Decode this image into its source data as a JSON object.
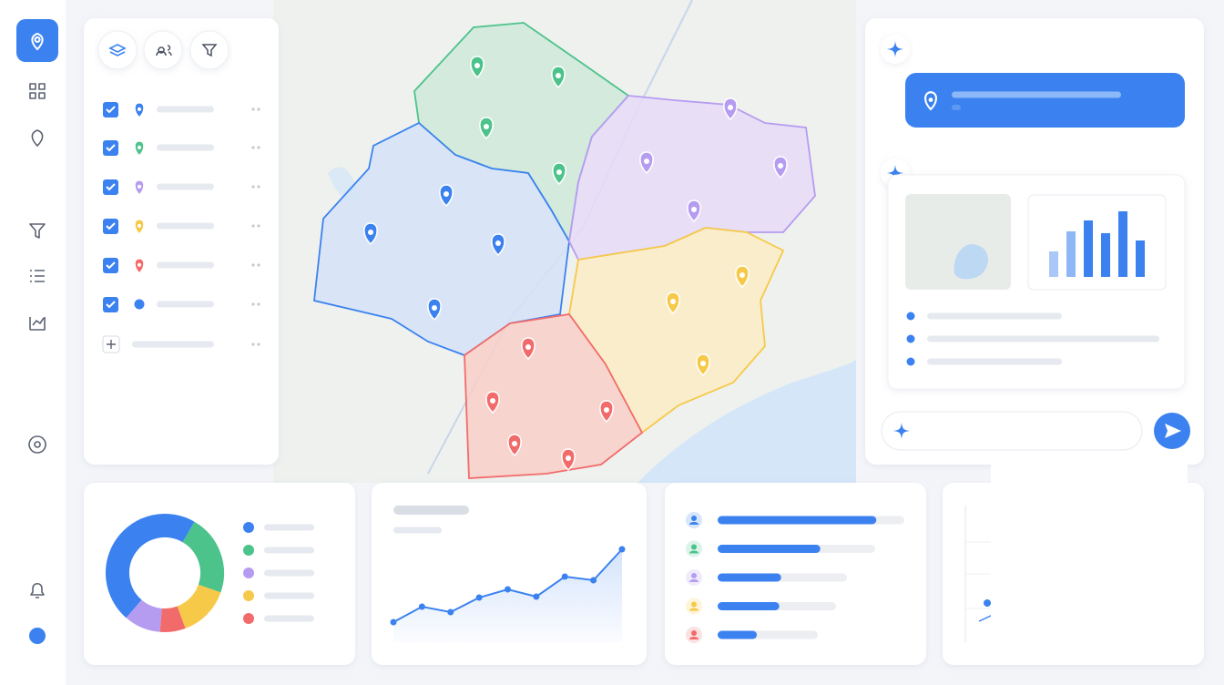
{
  "donut": {
    "type": "pie",
    "values": [
      22,
      14,
      7,
      10,
      47
    ],
    "colors": [
      "#4cc38a",
      "#f7c948",
      "#f26b6b",
      "#b69cf0",
      "#3b82f0"
    ]
  },
  "trend": {
    "type": "line",
    "values": [
      17,
      34,
      28,
      44,
      53,
      45,
      67,
      63,
      97
    ],
    "color": "#3b82f0"
  },
  "thumbnail_chart": {
    "type": "bar",
    "values": [
      28,
      50,
      62,
      48,
      72,
      40
    ],
    "colors": [
      "#a9c8f7",
      "#8fb6f5",
      "#3b82f0",
      "#3b82f0",
      "#3b82f0",
      "#3b82f0"
    ]
  },
  "progress": {
    "type": "bar",
    "values": [
      85,
      55,
      34,
      33,
      21
    ],
    "color": "#3b82f0"
  }
}
